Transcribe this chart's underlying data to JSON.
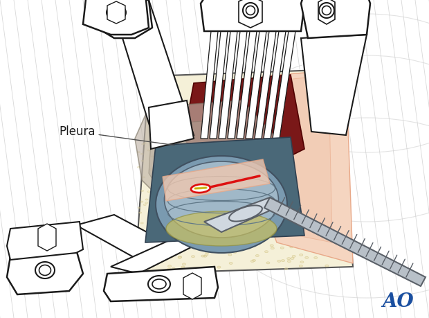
{
  "ao_text": "AO",
  "ao_color": "#1a4fa0",
  "ao_fontsize": 20,
  "pleura_text": "Pleura",
  "pleura_fontsize": 12,
  "white": "#ffffff",
  "off_white": "#f8f8f8",
  "light_gray_bg": "#ebebeb",
  "line_gray": "#d0d0d0",
  "black": "#1a1a1a",
  "dark_gray": "#555555",
  "med_gray": "#888888",
  "cream": "#f0e8c0",
  "cream2": "#e8dfa8",
  "light_cream": "#f5f0d8",
  "dark_cream": "#c8b870",
  "beige_texture": "#e8ddb0",
  "skin_pink": "#f0c8b0",
  "skin_med": "#e8a888",
  "light_pink": "#f5d5c0",
  "pink_highlight": "#f0b8a0",
  "dark_red": "#7a1818",
  "medium_red": "#a02828",
  "bright_red": "#dd1010",
  "blue_steel": "#7a9ab0",
  "dark_blue": "#4a6878",
  "slate": "#6888a0",
  "light_slate": "#a0b8c8",
  "yellow_bright": "#e8d840",
  "yellow_dark": "#b8a010",
  "tool_silver": "#b8c0c8",
  "tool_light": "#d0d8e0",
  "tool_dark": "#5a6068",
  "tool_mid": "#8090a0",
  "olive_shadow": "#8a8060",
  "gray_shadow": "#909090"
}
